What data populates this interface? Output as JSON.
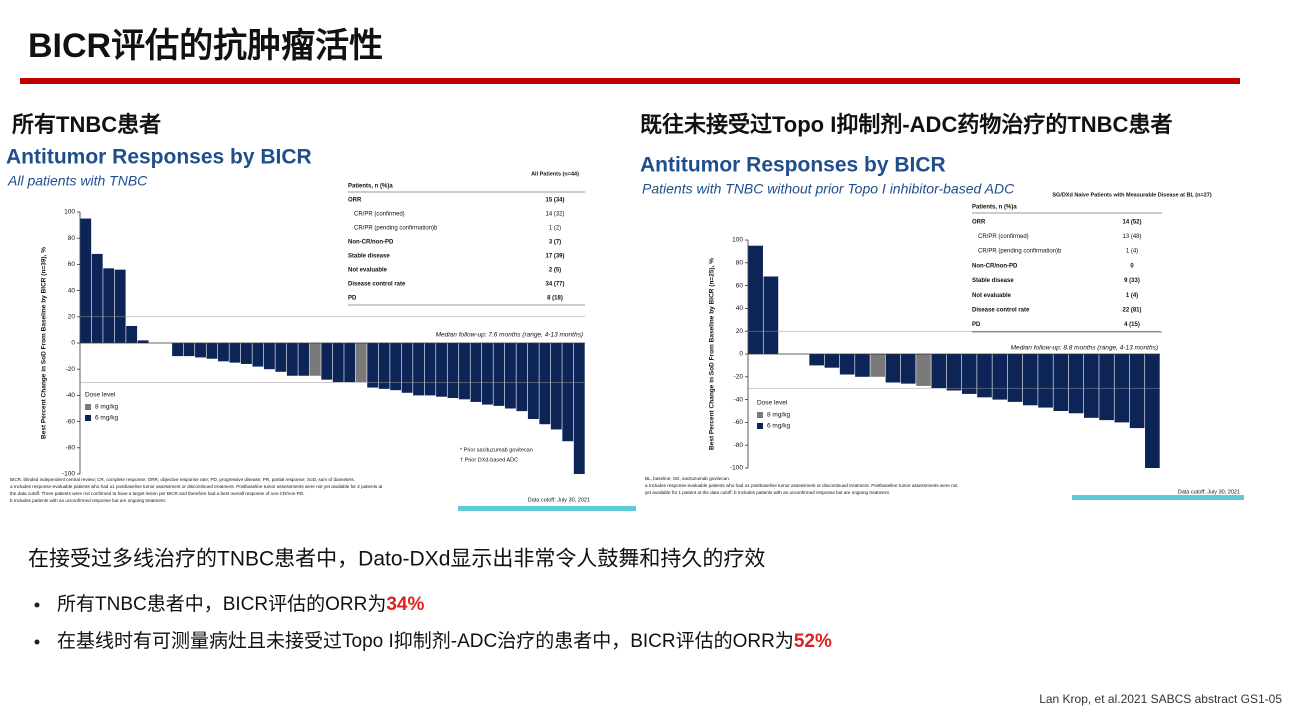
{
  "header": {
    "title": "BICR评估的抗肿瘤活性"
  },
  "panels": [
    {
      "heading": "所有TNBC患者"
    },
    {
      "heading": "既往未接受过Topo I抑制剂-ADC药物治疗的TNBC患者"
    }
  ],
  "chart_data": [
    {
      "type": "bar",
      "title": "Antitumor Responses by BICR",
      "subtitle": "All patients with TNBC",
      "y_label": "Best Percent Change in SoD From Baseline by BICR (n=39), %",
      "ylim": [
        -100,
        100
      ],
      "yticks": [
        -100,
        -80,
        -60,
        -40,
        -20,
        0,
        20,
        40,
        60,
        80,
        100
      ],
      "legend_title": "Dose level",
      "series": [
        {
          "name": "8 mg/kg",
          "color": "#7a7a7a",
          "values": [
            null,
            null,
            null,
            null,
            null,
            null,
            null,
            null,
            null,
            null,
            null,
            null,
            null,
            null,
            null,
            null,
            null,
            null,
            null,
            null,
            -25,
            null,
            null,
            null,
            -30,
            null,
            null,
            null,
            null,
            null,
            null,
            null,
            null,
            null,
            null,
            null,
            null,
            null,
            null,
            null,
            null,
            null,
            null,
            null
          ]
        },
        {
          "name": "6 mg/kg",
          "color": "#0c2456",
          "values": [
            95,
            68,
            57,
            56,
            13,
            2,
            0,
            0,
            -10,
            -10,
            -11,
            -12,
            -14,
            -15,
            -16,
            -18,
            -20,
            -22,
            -25,
            -25,
            null,
            -28,
            -30,
            -30,
            null,
            -34,
            -35,
            -36,
            -38,
            -40,
            -40,
            -41,
            -42,
            -43,
            -45,
            -47,
            -48,
            -50,
            -52,
            -58,
            -62,
            -66,
            -75,
            -100
          ]
        }
      ],
      "annotation": "Median follow-up: 7.6 months (range, 4-13 months)",
      "markers": [
        "* Prior sacituzumab govitecan",
        "† Prior DXd-based ADC"
      ],
      "table": {
        "column": "All Patients (n=44)",
        "row_header": "Patients, n (%)a",
        "rows": [
          [
            "ORR",
            "15 (34)"
          ],
          [
            "CR/PR (confirmed)",
            "14 (32)"
          ],
          [
            "CR/PR (pending confirmation)b",
            "1 (2)"
          ],
          [
            "Non-CR/non-PD",
            "3 (7)"
          ],
          [
            "Stable disease",
            "17 (39)"
          ],
          [
            "Not evaluable",
            "2 (5)"
          ],
          [
            "Disease control rate",
            "34 (77)"
          ],
          [
            "PD",
            "8 (18)"
          ]
        ]
      },
      "notes": [
        "BICR, blinded independent central review; CR, complete response; ORR, objective response rate; PD, progressive disease; PR, partial response; SoD, sum of diameters.",
        "a Includes response-evaluable patients who had ≥1 postbaseline tumor assessment or discontinued treatment. Postbaseline tumor assessments were not yet available for 2 patients at",
        "the data cutoff. Three patients were not confirmed to have a target lesion per BICR and therefore had a best overall response of non-CR/non-PD.",
        "b Includes patients with an unconfirmed response but are ongoing treatment."
      ],
      "cutoff": "Data cutoff: July 30, 2021"
    },
    {
      "type": "bar",
      "title": "Antitumor Responses by BICR",
      "subtitle": "Patients with TNBC without prior Topo I inhibitor-based ADC",
      "y_label": "Best Percent Change in SoD From Baseline by BICR (n=25), %",
      "ylim": [
        -100,
        100
      ],
      "yticks": [
        -100,
        -80,
        -60,
        -40,
        -20,
        0,
        20,
        40,
        60,
        80,
        100
      ],
      "legend_title": "Dose level",
      "series": [
        {
          "name": "8 mg/kg",
          "color": "#7a7a7a",
          "values": [
            null,
            null,
            null,
            null,
            null,
            null,
            null,
            null,
            -20,
            null,
            null,
            -28,
            null,
            null,
            null,
            null,
            null,
            null,
            null,
            null,
            null,
            null,
            null,
            null,
            null,
            null,
            null
          ]
        },
        {
          "name": "6 mg/kg",
          "color": "#0c2456",
          "values": [
            95,
            68,
            0,
            0,
            -10,
            -12,
            -18,
            -20,
            null,
            -25,
            -26,
            null,
            -30,
            -32,
            -35,
            -38,
            -40,
            -42,
            -45,
            -47,
            -50,
            -52,
            -56,
            -58,
            -60,
            -65,
            -100
          ]
        }
      ],
      "annotation": "Median follow-up: 8.8 months (range, 4-13 months)",
      "table": {
        "column": "SG/DXd Naive Patients with Measurable Disease at BL (n=27)",
        "row_header": "Patients, n (%)a",
        "rows": [
          [
            "ORR",
            "14 (52)"
          ],
          [
            "CR/PR (confirmed)",
            "13 (48)"
          ],
          [
            "CR/PR (pending confirmation)b",
            "1 (4)"
          ],
          [
            "Non-CR/non-PD",
            "0"
          ],
          [
            "Stable disease",
            "9 (33)"
          ],
          [
            "Not evaluable",
            "1 (4)"
          ],
          [
            "Disease control rate",
            "22 (81)"
          ],
          [
            "PD",
            "4 (15)"
          ]
        ]
      },
      "notes": [
        "BL, baseline; SG, sacituzumab govitecan.",
        "a Includes response-evaluable patients who had ≥1 postbaseline tumor assessment or discontinued treatment. Postbaseline tumor assessments were not",
        "yet available for 1 patient at the data cutoff. b Includes patients with an unconfirmed response but are ongoing treatment."
      ],
      "cutoff": "Data cutoff: July 30, 2021"
    }
  ],
  "summary": {
    "lead": "在接受过多线治疗的TNBC患者中，Dato-DXd显示出非常令人鼓舞和持久的疗效",
    "bullets": [
      {
        "text": "所有TNBC患者中，BICR评估的ORR为",
        "highlight": "34%"
      },
      {
        "text": "在基线时有可测量病灶且未接受过Topo I抑制剂-ADC治疗的患者中，BICR评估的ORR为",
        "highlight": "52%"
      }
    ]
  },
  "footer": "Lan Krop, et al.2021 SABCS abstract GS1-05"
}
